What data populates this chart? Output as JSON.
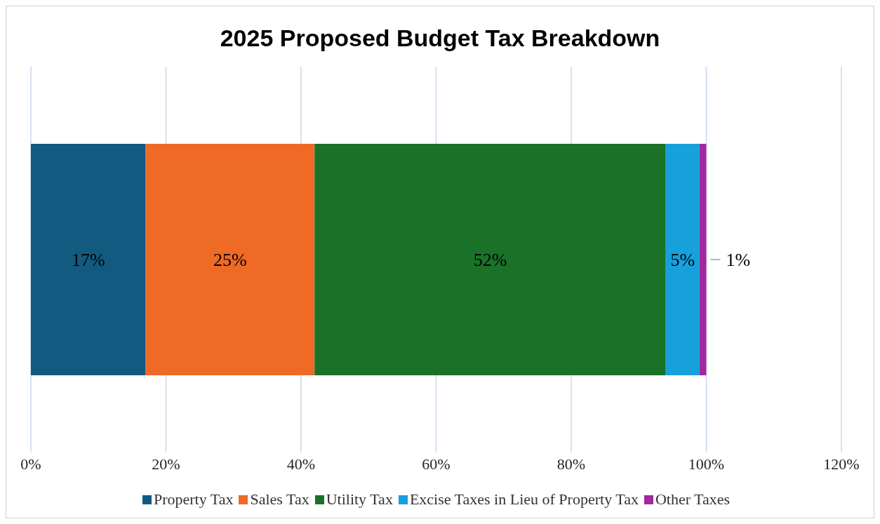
{
  "chart_data": {
    "type": "bar",
    "title": "2025 Proposed Budget Tax Breakdown",
    "orientation": "horizontal",
    "stacked": true,
    "categories": [
      null
    ],
    "series": [
      {
        "name": "Property Tax",
        "color": "#135a80",
        "values": [
          17
        ],
        "value_labels": [
          "17%"
        ]
      },
      {
        "name": "Sales Tax",
        "color": "#ee6a25",
        "values": [
          25
        ],
        "value_labels": [
          "25%"
        ]
      },
      {
        "name": "Utility Tax",
        "color": "#1a7228",
        "values": [
          52
        ],
        "value_labels": [
          "52%"
        ]
      },
      {
        "name": "Excise Taxes in Lieu of Property Tax",
        "color": "#16a0dc",
        "values": [
          5
        ],
        "value_labels": [
          "5%"
        ]
      },
      {
        "name": "Other Taxes",
        "color": "#a3289e",
        "values": [
          1
        ],
        "value_labels": [
          "1%"
        ]
      }
    ],
    "xlim": [
      0,
      120
    ],
    "xticks": [
      {
        "value": 0,
        "label": "0%"
      },
      {
        "value": 20,
        "label": "20%"
      },
      {
        "value": 40,
        "label": "40%"
      },
      {
        "value": 60,
        "label": "60%"
      },
      {
        "value": 80,
        "label": "80%"
      },
      {
        "value": 100,
        "label": "100%"
      },
      {
        "value": 120,
        "label": "120%"
      }
    ],
    "grid": "x",
    "legend": "bottom"
  }
}
